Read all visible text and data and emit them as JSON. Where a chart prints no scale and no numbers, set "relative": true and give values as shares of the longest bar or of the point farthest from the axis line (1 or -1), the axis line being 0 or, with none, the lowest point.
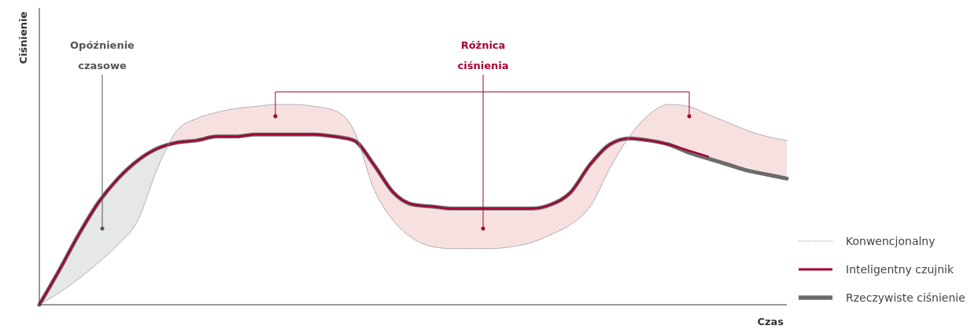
{
  "chart_data": {
    "type": "line",
    "relative": true,
    "xlabel": "Czas",
    "ylabel": "Ciśnienie",
    "legend": "bottom right",
    "categories": [
      null,
      null,
      null,
      null,
      null,
      null,
      null,
      null,
      null,
      null,
      null,
      null,
      null,
      null,
      null,
      null,
      null,
      null,
      null,
      null,
      null,
      null,
      null,
      null,
      null,
      null,
      null,
      null,
      null,
      null,
      null,
      null,
      null,
      null,
      null,
      null,
      null,
      null,
      null
    ],
    "series": [
      {
        "name": "Konwencjonalny",
        "color": "#999999",
        "line_style": "dotted",
        "values": [
          0,
          0.06,
          0.13,
          0.21,
          0.3,
          0.42,
          0.68,
          0.87,
          0.93,
          0.96,
          0.98,
          0.99,
          1,
          1,
          0.99,
          0.97,
          0.87,
          0.58,
          0.42,
          0.33,
          0.29,
          0.28,
          0.28,
          0.28,
          0.29,
          0.31,
          0.35,
          0.4,
          0.49,
          0.68,
          0.84,
          0.95,
          1,
          0.99,
          0.95,
          0.91,
          0.87,
          0.84,
          0.82
        ]
      },
      {
        "name": "Inteligentny czujnik",
        "color": "#a50034",
        "line_style": "solid",
        "values": [
          0,
          0.17,
          0.35,
          0.51,
          0.63,
          0.72,
          0.78,
          0.81,
          0.82,
          0.84,
          0.84,
          0.85,
          0.85,
          0.85,
          0.85,
          0.84,
          0.82,
          0.7,
          0.56,
          0.5,
          0.49,
          0.48,
          0.48,
          0.48,
          0.48,
          0.48,
          0.5,
          0.56,
          0.7,
          0.8,
          0.83,
          0.82,
          0.8,
          0.77,
          0.74,
          null,
          null,
          null,
          null
        ]
      },
      {
        "name": "Rzeczywiste ciśnienie",
        "color": "#6b6b6b",
        "line_style": "solid",
        "values": [
          0,
          0.17,
          0.35,
          0.51,
          0.63,
          0.72,
          0.78,
          0.81,
          0.82,
          0.84,
          0.84,
          0.85,
          0.85,
          0.85,
          0.85,
          0.84,
          0.82,
          0.7,
          0.56,
          0.5,
          0.49,
          0.48,
          0.48,
          0.48,
          0.48,
          0.48,
          0.5,
          0.56,
          0.7,
          0.8,
          0.83,
          0.82,
          0.8,
          0.76,
          0.73,
          0.7,
          0.67,
          0.65,
          0.63
        ]
      }
    ],
    "annotations": [
      "Opóźnienie czasowe",
      "Różnica ciśnienia"
    ]
  }
}
